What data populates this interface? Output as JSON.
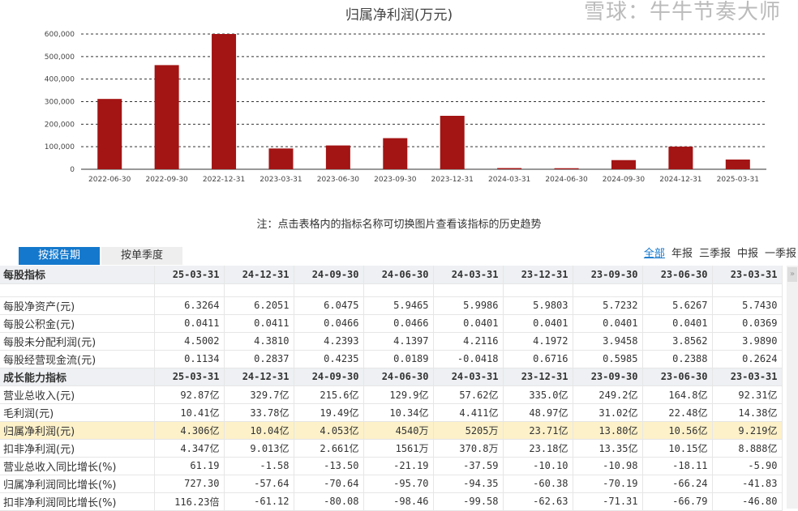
{
  "chart_data": {
    "type": "bar",
    "title": "归属净利润(万元)",
    "categories": [
      "2022-06-30",
      "2022-09-30",
      "2022-12-31",
      "2023-03-31",
      "2023-06-30",
      "2023-09-30",
      "2023-12-31",
      "2024-03-31",
      "2024-06-30",
      "2024-09-30",
      "2024-12-31",
      "2025-03-31"
    ],
    "values": [
      312000,
      462000,
      600000,
      92190,
      105600,
      138000,
      237100,
      5205,
      4540,
      40530,
      100400,
      43060
    ],
    "ylim": [
      0,
      600000
    ],
    "yticks": [
      "0",
      "100,000",
      "200,000",
      "300,000",
      "400,000",
      "500,000",
      "600,000"
    ],
    "grid": true,
    "color": "#a31414"
  },
  "note": "注：点击表格内的指标名称可切换图片查看该指标的历史趋势",
  "tabs": [
    "按报告期",
    "按单季度"
  ],
  "filters": [
    "全部",
    "年报",
    "三季报",
    "中报",
    "一季报"
  ],
  "watermark": "雪球：牛牛节奏大师",
  "dates": [
    "25-03-31",
    "24-12-31",
    "24-09-30",
    "24-06-30",
    "24-03-31",
    "23-12-31",
    "23-09-30",
    "23-06-30",
    "23-03-31"
  ],
  "sections": [
    {
      "title": "每股指标",
      "rows": [
        {
          "name": "每股净资产(元)",
          "v": [
            "6.3264",
            "6.2051",
            "6.0475",
            "5.9465",
            "5.9986",
            "5.9803",
            "5.7232",
            "5.6267",
            "5.7430"
          ]
        },
        {
          "name": "每股公积金(元)",
          "v": [
            "0.0411",
            "0.0411",
            "0.0466",
            "0.0466",
            "0.0401",
            "0.0401",
            "0.0401",
            "0.0401",
            "0.0369"
          ]
        },
        {
          "name": "每股未分配利润(元)",
          "v": [
            "4.5002",
            "4.3810",
            "4.2393",
            "4.1397",
            "4.2116",
            "4.1972",
            "3.9458",
            "3.8562",
            "3.9890"
          ]
        },
        {
          "name": "每股经营现金流(元)",
          "v": [
            "0.1134",
            "0.2837",
            "0.4235",
            "0.0189",
            "-0.0418",
            "0.6716",
            "0.5985",
            "0.2388",
            "0.2624"
          ]
        }
      ]
    },
    {
      "title": "成长能力指标",
      "rows": [
        {
          "name": "营业总收入(元)",
          "v": [
            "92.87亿",
            "329.7亿",
            "215.6亿",
            "129.9亿",
            "57.62亿",
            "335.0亿",
            "249.2亿",
            "164.8亿",
            "92.31亿"
          ]
        },
        {
          "name": "毛利润(元)",
          "v": [
            "10.41亿",
            "33.78亿",
            "19.49亿",
            "10.34亿",
            "4.411亿",
            "48.97亿",
            "31.02亿",
            "22.48亿",
            "14.38亿"
          ]
        },
        {
          "name": "归属净利润(元)",
          "v": [
            "4.306亿",
            "10.04亿",
            "4.053亿",
            "4540万",
            "5205万",
            "23.71亿",
            "13.80亿",
            "10.56亿",
            "9.219亿"
          ],
          "hl": true
        },
        {
          "name": "扣非净利润(元)",
          "v": [
            "4.347亿",
            "9.013亿",
            "2.661亿",
            "1561万",
            "370.8万",
            "23.18亿",
            "13.35亿",
            "10.15亿",
            "8.888亿"
          ]
        },
        {
          "name": "营业总收入同比增长(%)",
          "v": [
            "61.19",
            "-1.58",
            "-13.50",
            "-21.19",
            "-37.59",
            "-10.10",
            "-10.98",
            "-18.11",
            "-5.90"
          ]
        },
        {
          "name": "归属净利润同比增长(%)",
          "v": [
            "727.30",
            "-57.64",
            "-70.64",
            "-95.70",
            "-94.35",
            "-60.38",
            "-70.19",
            "-66.24",
            "-41.83"
          ]
        },
        {
          "name": "扣非净利润同比增长(%)",
          "v": [
            "116.23倍",
            "-61.12",
            "-80.08",
            "-98.46",
            "-99.58",
            "-62.63",
            "-71.31",
            "-66.79",
            "-46.80"
          ]
        }
      ]
    }
  ]
}
